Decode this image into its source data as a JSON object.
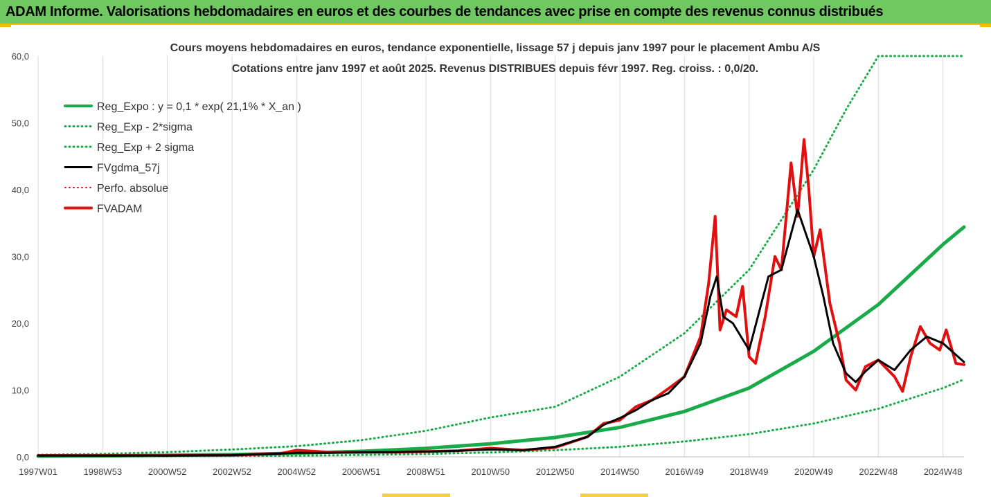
{
  "banner": {
    "title": "ADAM Informe. Valorisations hebdomadaires en euros et des courbes de tendances avec prise en compte des revenus connus distribués",
    "background_color": "#70c860",
    "accent_color": "#f0c000"
  },
  "chart_data": {
    "type": "line",
    "title_line1": "Cours moyens hebdomadaires en euros, tendance exponentielle, lissage 57 j depuis janv 1997 pour le placement Ambu A/S",
    "title_line2": "Cotations entre janv 1997 et août 2025. Revenus DISTRIBUES depuis févr 1997. Reg. croiss. : 0,0/20.",
    "xlabel": "",
    "ylabel": "",
    "x_tick_labels": [
      "1997W01",
      "1998W53",
      "2000W52",
      "2002W52",
      "2004W52",
      "2006W51",
      "2008W51",
      "2010W50",
      "2012W50",
      "2014W50",
      "2016W49",
      "2018W49",
      "2020W49",
      "2022W48",
      "2024W48"
    ],
    "x_tick_positions_years": [
      1997.0,
      1999.0,
      2001.0,
      2003.0,
      2005.0,
      2007.0,
      2009.0,
      2011.0,
      2013.0,
      2015.0,
      2017.0,
      2019.0,
      2021.0,
      2023.0,
      2025.0
    ],
    "xlim_years": [
      1997.0,
      2025.65
    ],
    "y_ticks": [
      "0,0",
      "10,0",
      "20,0",
      "30,0",
      "40,0",
      "50,0",
      "60,0"
    ],
    "y_tick_values": [
      0,
      10,
      20,
      30,
      40,
      50,
      60
    ],
    "ylim": [
      0,
      60
    ],
    "grid": "vertical",
    "legend_position": "top-left",
    "series": [
      {
        "name": "Reg_Expo : y = 0,1 * exp( 21,1% *  X_an )",
        "color": "#1aaa4a",
        "style": "solid",
        "width": 5,
        "x": [
          1997.0,
          1999.0,
          2001.0,
          2003.0,
          2005.0,
          2007.0,
          2009.0,
          2011.0,
          2013.0,
          2015.0,
          2017.0,
          2019.0,
          2021.0,
          2023.0,
          2025.0,
          2025.65
        ],
        "y": [
          0.1,
          0.15,
          0.23,
          0.35,
          0.54,
          0.83,
          1.27,
          1.96,
          2.9,
          4.4,
          6.8,
          10.3,
          15.8,
          22.8,
          31.8,
          34.4
        ]
      },
      {
        "name": "Reg_Exp - 2*sigma",
        "color": "#1aaa4a",
        "style": "dotted",
        "width": 3,
        "x": [
          1997.0,
          1999.0,
          2001.0,
          2003.0,
          2005.0,
          2007.0,
          2009.0,
          2011.0,
          2013.0,
          2015.0,
          2017.0,
          2019.0,
          2021.0,
          2023.0,
          2025.0,
          2025.65
        ],
        "y": [
          0.03,
          0.05,
          0.08,
          0.12,
          0.18,
          0.28,
          0.43,
          0.66,
          1.0,
          1.5,
          2.3,
          3.4,
          5.0,
          7.2,
          10.3,
          11.6
        ]
      },
      {
        "name": "Reg_Exp + 2 sigma",
        "color": "#1aaa4a",
        "style": "dotted",
        "width": 3,
        "x": [
          1997.0,
          1999.0,
          2001.0,
          2003.0,
          2005.0,
          2007.0,
          2009.0,
          2011.0,
          2013.0,
          2015.0,
          2017.0,
          2019.0,
          2021.0,
          2022.0,
          2023.0,
          2025.65
        ],
        "y": [
          0.3,
          0.45,
          0.7,
          1.1,
          1.6,
          2.5,
          3.9,
          5.9,
          7.5,
          12.0,
          18.5,
          28.0,
          43.0,
          52.0,
          60.0,
          60.0
        ]
      },
      {
        "name": "FVgdma_57j",
        "color": "#000000",
        "style": "solid",
        "width": 3,
        "x": [
          1997.0,
          1999.0,
          2001.0,
          2003.0,
          2004.5,
          2005.0,
          2006.0,
          2008.0,
          2010.0,
          2011.0,
          2012.0,
          2013.0,
          2014.0,
          2014.5,
          2015.0,
          2015.5,
          2016.0,
          2016.5,
          2017.0,
          2017.5,
          2017.8,
          2018.0,
          2018.2,
          2018.5,
          2019.0,
          2019.3,
          2019.6,
          2020.0,
          2020.5,
          2021.0,
          2021.3,
          2021.6,
          2022.0,
          2022.3,
          2022.6,
          2023.0,
          2023.5,
          2024.0,
          2024.5,
          2025.0,
          2025.65
        ],
        "y": [
          0.2,
          0.2,
          0.2,
          0.25,
          0.5,
          0.6,
          0.6,
          0.7,
          0.9,
          1.1,
          1.0,
          1.5,
          3.0,
          4.8,
          5.8,
          7.0,
          8.5,
          9.5,
          12.0,
          17.0,
          24.0,
          27.0,
          21.0,
          20.0,
          16.0,
          21.5,
          27.0,
          28.0,
          37.0,
          30.0,
          24.0,
          17.0,
          12.5,
          11.2,
          12.8,
          14.5,
          13.0,
          16.0,
          18.0,
          17.0,
          14.2
        ]
      },
      {
        "name": "Perfo. absolue",
        "color": "#e01010",
        "style": "dotted",
        "width": 2,
        "x": [
          1997.0,
          1999.0,
          2001.0,
          2003.0,
          2004.5,
          2005.0,
          2006.0,
          2008.0,
          2010.0,
          2011.0,
          2012.0,
          2013.0,
          2014.0,
          2014.5,
          2015.0,
          2015.5,
          2016.0,
          2016.5,
          2017.0,
          2017.5,
          2017.75,
          2017.95,
          2018.1,
          2018.3,
          2018.6,
          2018.8,
          2019.0,
          2019.2,
          2019.5,
          2019.8,
          2020.0,
          2020.3,
          2020.5,
          2020.7,
          2020.85,
          2021.0,
          2021.2,
          2021.5,
          2021.8,
          2022.0,
          2022.3,
          2022.6,
          2023.0,
          2023.5,
          2023.75,
          2024.0,
          2024.3,
          2024.6,
          2024.9,
          2025.1,
          2025.4,
          2025.65
        ],
        "y": [
          0.2,
          0.2,
          0.2,
          0.25,
          0.5,
          1.0,
          0.7,
          0.7,
          0.9,
          1.3,
          1.0,
          1.4,
          3.0,
          5.0,
          5.5,
          7.5,
          8.5,
          10.2,
          12.0,
          18.0,
          26.0,
          36.0,
          19.0,
          22.0,
          21.0,
          25.5,
          15.0,
          14.0,
          21.0,
          30.0,
          28.0,
          44.0,
          36.0,
          47.5,
          40.0,
          30.0,
          34.0,
          23.0,
          17.0,
          11.5,
          10.0,
          13.5,
          14.5,
          12.0,
          9.8,
          15.0,
          19.5,
          17.0,
          16.0,
          19.0,
          14.0,
          13.8
        ]
      },
      {
        "name": "FVADAM",
        "color": "#e01010",
        "style": "solid",
        "width": 4,
        "x": [
          1997.0,
          1999.0,
          2001.0,
          2003.0,
          2004.5,
          2005.0,
          2006.0,
          2008.0,
          2010.0,
          2011.0,
          2012.0,
          2013.0,
          2014.0,
          2014.5,
          2015.0,
          2015.5,
          2016.0,
          2016.5,
          2017.0,
          2017.5,
          2017.75,
          2017.95,
          2018.1,
          2018.3,
          2018.6,
          2018.8,
          2019.0,
          2019.2,
          2019.5,
          2019.8,
          2020.0,
          2020.3,
          2020.5,
          2020.7,
          2020.85,
          2021.0,
          2021.2,
          2021.5,
          2021.8,
          2022.0,
          2022.3,
          2022.6,
          2023.0,
          2023.5,
          2023.75,
          2024.0,
          2024.3,
          2024.6,
          2024.9,
          2025.1,
          2025.4,
          2025.65
        ],
        "y": [
          0.2,
          0.2,
          0.2,
          0.25,
          0.5,
          1.0,
          0.7,
          0.7,
          0.9,
          1.3,
          1.0,
          1.4,
          3.0,
          5.0,
          5.5,
          7.5,
          8.5,
          10.2,
          12.0,
          18.0,
          26.0,
          36.0,
          19.0,
          22.0,
          21.0,
          25.5,
          15.0,
          14.0,
          21.0,
          30.0,
          28.0,
          44.0,
          36.0,
          47.5,
          40.0,
          30.0,
          34.0,
          23.0,
          17.0,
          11.5,
          10.0,
          13.5,
          14.5,
          12.0,
          9.8,
          15.0,
          19.5,
          17.0,
          16.0,
          19.0,
          14.0,
          13.8
        ]
      }
    ]
  }
}
